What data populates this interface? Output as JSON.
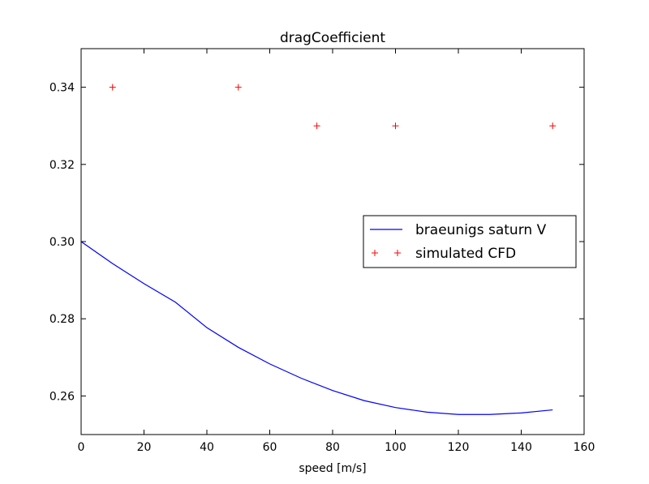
{
  "chart_data": {
    "type": "line",
    "title": "dragCoefficient",
    "xlabel": "speed [m/s]",
    "ylabel": "",
    "xlim": [
      0,
      160
    ],
    "ylim": [
      0.25,
      0.35
    ],
    "xticks": [
      0,
      20,
      40,
      60,
      80,
      100,
      120,
      140,
      160
    ],
    "yticks": [
      0.26,
      0.28,
      0.3,
      0.32,
      0.34
    ],
    "xtick_labels": [
      "0",
      "20",
      "40",
      "60",
      "80",
      "100",
      "120",
      "140",
      "160"
    ],
    "ytick_labels": [
      "0.26",
      "0.28",
      "0.30",
      "0.32",
      "0.34"
    ],
    "grid": false,
    "legend_position": "center-right",
    "series": [
      {
        "name": "braeunigs saturn V",
        "kind": "line",
        "color": "#0000ff",
        "x": [
          0,
          10,
          20,
          30,
          40,
          50,
          60,
          70,
          80,
          90,
          100,
          110,
          120,
          130,
          140,
          150
        ],
        "y": [
          0.3,
          0.2943,
          0.2891,
          0.2843,
          0.2777,
          0.2726,
          0.2683,
          0.2646,
          0.2614,
          0.2588,
          0.257,
          0.2558,
          0.2552,
          0.2552,
          0.2556,
          0.2564
        ]
      },
      {
        "name": "simulated CFD",
        "kind": "scatter",
        "marker": "+",
        "color": "#ff0000",
        "x": [
          10,
          50,
          75,
          100,
          150
        ],
        "y": [
          0.34,
          0.34,
          0.33,
          0.33,
          0.33
        ]
      }
    ]
  }
}
